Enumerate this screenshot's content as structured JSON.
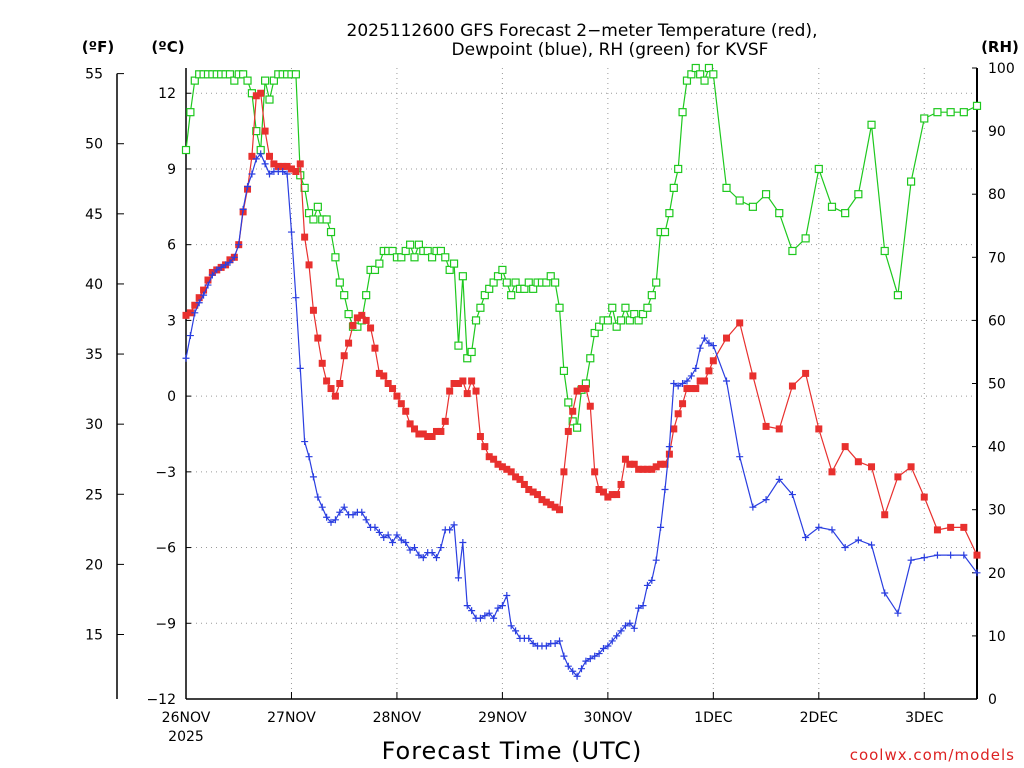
{
  "title_line1": "2025112600 GFS Forecast 2−meter Temperature (red),",
  "title_line2": "Dewpoint (blue), RH (green) for KVSF",
  "axis_units": {
    "fahrenheit": "(ºF)",
    "celsius": "(ºC)",
    "rh": "(RH)"
  },
  "xlabel": "Forecast Time (UTC)",
  "year_label": "2025",
  "credit": "coolwx.com/models",
  "colors": {
    "temperature": "#e8302e",
    "dewpoint": "#2a3ee0",
    "rh": "#1ec81e"
  },
  "chart_data": {
    "type": "line",
    "x_unit": "hours since 2025-11-26 00Z",
    "xlim": [
      0,
      180
    ],
    "x_ticks": [
      {
        "hour": 0,
        "label": "26NOV"
      },
      {
        "hour": 24,
        "label": "27NOV"
      },
      {
        "hour": 48,
        "label": "28NOV"
      },
      {
        "hour": 72,
        "label": "29NOV"
      },
      {
        "hour": 96,
        "label": "30NOV"
      },
      {
        "hour": 120,
        "label": "1DEC"
      },
      {
        "hour": 144,
        "label": "2DEC"
      },
      {
        "hour": 168,
        "label": "3DEC"
      }
    ],
    "y_left_celsius": {
      "range": [
        -12,
        13
      ],
      "ticks": [
        "12",
        "9",
        "6",
        "3",
        "0",
        "−3",
        "−6",
        "−9",
        "−12"
      ]
    },
    "y_left_fahrenheit": {
      "ticks": [
        "55",
        "50",
        "45",
        "40",
        "35",
        "30",
        "25",
        "20",
        "15"
      ]
    },
    "y_right_rh": {
      "range": [
        0,
        100
      ],
      "ticks": [
        "100",
        "90",
        "80",
        "70",
        "60",
        "50",
        "40",
        "30",
        "20",
        "10",
        "0"
      ]
    },
    "series": [
      {
        "name": "Temperature",
        "unit": "C",
        "x": [
          0,
          1,
          2,
          3,
          4,
          5,
          6,
          7,
          8,
          9,
          10,
          11,
          12,
          13,
          14,
          15,
          16,
          17,
          18,
          19,
          20,
          21,
          22,
          23,
          24,
          25,
          26,
          27,
          28,
          29,
          30,
          31,
          32,
          33,
          34,
          35,
          36,
          37,
          38,
          39,
          40,
          41,
          42,
          43,
          44,
          45,
          46,
          47,
          48,
          49,
          50,
          51,
          52,
          53,
          54,
          55,
          56,
          57,
          58,
          59,
          60,
          61,
          62,
          63,
          64,
          65,
          66,
          67,
          68,
          69,
          70,
          71,
          72,
          73,
          74,
          75,
          76,
          77,
          78,
          79,
          80,
          81,
          82,
          83,
          84,
          85,
          86,
          87,
          88,
          89,
          90,
          91,
          92,
          93,
          94,
          95,
          96,
          97,
          98,
          99,
          100,
          101,
          102,
          103,
          104,
          105,
          106,
          107,
          108,
          109,
          110,
          111,
          112,
          113,
          114,
          115,
          116,
          117,
          118,
          119,
          120,
          123,
          126,
          129,
          132,
          135,
          138,
          141,
          144,
          147,
          150,
          153,
          156,
          159,
          162,
          165,
          168,
          171,
          174,
          177,
          180
        ],
        "values": [
          3.2,
          3.3,
          3.6,
          3.9,
          4.2,
          4.6,
          4.9,
          5.0,
          5.1,
          5.2,
          5.4,
          5.5,
          6.0,
          7.3,
          8.2,
          9.5,
          11.9,
          12.0,
          10.5,
          9.5,
          9.2,
          9.1,
          9.1,
          9.1,
          9.0,
          8.9,
          9.2,
          6.3,
          5.2,
          3.4,
          2.3,
          1.3,
          0.6,
          0.3,
          0.0,
          0.5,
          1.6,
          2.1,
          2.8,
          3.1,
          3.2,
          3.0,
          2.7,
          1.9,
          0.9,
          0.8,
          0.5,
          0.3,
          0.0,
          -0.3,
          -0.6,
          -1.1,
          -1.3,
          -1.5,
          -1.5,
          -1.6,
          -1.6,
          -1.4,
          -1.4,
          -1.0,
          0.2,
          0.5,
          0.5,
          0.6,
          0.1,
          0.6,
          0.2,
          -1.6,
          -2.0,
          -2.4,
          -2.5,
          -2.7,
          -2.8,
          -2.9,
          -3.0,
          -3.2,
          -3.3,
          -3.5,
          -3.7,
          -3.8,
          -3.9,
          -4.1,
          -4.2,
          -4.3,
          -4.4,
          -4.5,
          -3.0,
          -1.4,
          -0.6,
          0.2,
          0.3,
          0.3,
          -0.4,
          -3.0,
          -3.7,
          -3.8,
          -4.0,
          -3.9,
          -3.9,
          -3.5,
          -2.5,
          -2.7,
          -2.7,
          -2.9,
          -2.9,
          -2.9,
          -2.9,
          -2.8,
          -2.7,
          -2.7,
          -2.3,
          -1.3,
          -0.7,
          -0.3,
          0.3,
          0.3,
          0.3,
          0.6,
          0.6,
          1.0,
          1.4,
          2.3,
          2.9,
          0.8,
          -1.2,
          -1.3,
          0.4,
          0.9,
          -1.3,
          -3.0,
          -2.0,
          -2.6,
          -2.8,
          -4.7,
          -3.2,
          -2.8,
          -4.0,
          -5.3,
          -5.2,
          -5.2,
          -6.3
        ]
      },
      {
        "name": "Dewpoint",
        "unit": "C",
        "x": [
          0,
          1,
          2,
          3,
          4,
          5,
          6,
          7,
          8,
          9,
          10,
          11,
          12,
          13,
          14,
          15,
          16,
          17,
          18,
          19,
          20,
          21,
          22,
          23,
          24,
          25,
          26,
          27,
          28,
          29,
          30,
          31,
          32,
          33,
          34,
          35,
          36,
          37,
          38,
          39,
          40,
          41,
          42,
          43,
          44,
          45,
          46,
          47,
          48,
          49,
          50,
          51,
          52,
          53,
          54,
          55,
          56,
          57,
          58,
          59,
          60,
          61,
          62,
          63,
          64,
          65,
          66,
          67,
          68,
          69,
          70,
          71,
          72,
          73,
          74,
          75,
          76,
          77,
          78,
          79,
          80,
          81,
          82,
          83,
          84,
          85,
          86,
          87,
          88,
          89,
          90,
          91,
          92,
          93,
          94,
          95,
          96,
          97,
          98,
          99,
          100,
          101,
          102,
          103,
          104,
          105,
          106,
          107,
          108,
          109,
          110,
          111,
          112,
          113,
          114,
          115,
          116,
          117,
          118,
          119,
          120,
          123,
          126,
          129,
          132,
          135,
          138,
          141,
          144,
          147,
          150,
          153,
          156,
          159,
          162,
          165,
          168,
          171,
          174,
          177,
          180
        ],
        "values": [
          1.5,
          2.4,
          3.3,
          3.7,
          4.0,
          4.4,
          4.8,
          5.0,
          5.1,
          5.2,
          5.3,
          5.5,
          6.0,
          7.4,
          8.3,
          8.8,
          9.4,
          9.6,
          9.2,
          8.8,
          8.9,
          8.9,
          8.9,
          8.8,
          6.5,
          3.9,
          1.1,
          -1.8,
          -2.4,
          -3.2,
          -4.0,
          -4.4,
          -4.8,
          -5.0,
          -4.9,
          -4.6,
          -4.4,
          -4.7,
          -4.7,
          -4.6,
          -4.6,
          -4.9,
          -5.2,
          -5.2,
          -5.4,
          -5.6,
          -5.5,
          -5.8,
          -5.5,
          -5.7,
          -5.8,
          -6.1,
          -6.0,
          -6.3,
          -6.4,
          -6.2,
          -6.2,
          -6.4,
          -6.0,
          -5.3,
          -5.3,
          -5.1,
          -7.2,
          -5.8,
          -8.3,
          -8.5,
          -8.8,
          -8.8,
          -8.7,
          -8.6,
          -8.8,
          -8.4,
          -8.3,
          -7.9,
          -9.1,
          -9.3,
          -9.6,
          -9.6,
          -9.6,
          -9.8,
          -9.9,
          -9.9,
          -9.9,
          -9.8,
          -9.8,
          -9.7,
          -10.3,
          -10.7,
          -10.9,
          -11.1,
          -10.8,
          -10.5,
          -10.4,
          -10.3,
          -10.2,
          -10.0,
          -9.9,
          -9.7,
          -9.5,
          -9.3,
          -9.1,
          -9.0,
          -9.2,
          -8.4,
          -8.3,
          -7.5,
          -7.3,
          -6.5,
          -5.2,
          -3.7,
          -2.0,
          0.5,
          0.4,
          0.5,
          0.6,
          0.8,
          1.1,
          1.9,
          2.3,
          2.1,
          2.0,
          0.6,
          -2.4,
          -4.4,
          -4.1,
          -3.3,
          -3.9,
          -5.6,
          -5.2,
          -5.3,
          -6.0,
          -5.7,
          -5.9,
          -7.8,
          -8.6,
          -6.5,
          -6.4,
          -6.3,
          -6.3,
          -6.3,
          -7.0
        ]
      },
      {
        "name": "RH",
        "unit": "%",
        "x": [
          0,
          1,
          2,
          3,
          4,
          5,
          6,
          7,
          8,
          9,
          10,
          11,
          12,
          13,
          14,
          15,
          16,
          17,
          18,
          19,
          20,
          21,
          22,
          23,
          24,
          25,
          26,
          27,
          28,
          29,
          30,
          31,
          32,
          33,
          34,
          35,
          36,
          37,
          38,
          39,
          40,
          41,
          42,
          43,
          44,
          45,
          46,
          47,
          48,
          49,
          50,
          51,
          52,
          53,
          54,
          55,
          56,
          57,
          58,
          59,
          60,
          61,
          62,
          63,
          64,
          65,
          66,
          67,
          68,
          69,
          70,
          71,
          72,
          73,
          74,
          75,
          76,
          77,
          78,
          79,
          80,
          81,
          82,
          83,
          84,
          85,
          86,
          87,
          88,
          89,
          90,
          91,
          92,
          93,
          94,
          95,
          96,
          97,
          98,
          99,
          100,
          101,
          102,
          103,
          104,
          105,
          106,
          107,
          108,
          109,
          110,
          111,
          112,
          113,
          114,
          115,
          116,
          117,
          118,
          119,
          120,
          123,
          126,
          129,
          132,
          135,
          138,
          141,
          144,
          147,
          150,
          153,
          156,
          159,
          162,
          165,
          168,
          171,
          174,
          177,
          180
        ],
        "values": [
          87,
          93,
          98,
          99,
          99,
          99,
          99,
          99,
          99,
          99,
          99,
          98,
          99,
          99,
          98,
          96,
          90,
          87,
          98,
          95,
          98,
          99,
          99,
          99,
          99,
          99,
          83,
          81,
          77,
          76,
          78,
          76,
          76,
          74,
          70,
          66,
          64,
          61,
          59,
          59,
          60,
          64,
          68,
          68,
          69,
          71,
          71,
          71,
          70,
          70,
          71,
          72,
          70,
          72,
          71,
          71,
          70,
          71,
          71,
          70,
          68,
          69,
          56,
          67,
          54,
          55,
          60,
          62,
          64,
          65,
          66,
          67,
          68,
          66,
          64,
          66,
          65,
          65,
          66,
          65,
          66,
          66,
          66,
          67,
          66,
          62,
          52,
          47,
          44,
          43,
          49,
          50,
          54,
          58,
          59,
          60,
          60,
          62,
          59,
          60,
          62,
          60,
          61,
          60,
          61,
          62,
          64,
          66,
          74,
          74,
          77,
          81,
          84,
          93,
          98,
          99,
          100,
          99,
          98,
          100,
          99,
          81,
          79,
          78,
          80,
          77,
          71,
          73,
          84,
          78,
          77,
          80,
          91,
          71,
          64,
          82,
          92,
          93,
          93,
          93,
          94
        ]
      }
    ]
  }
}
